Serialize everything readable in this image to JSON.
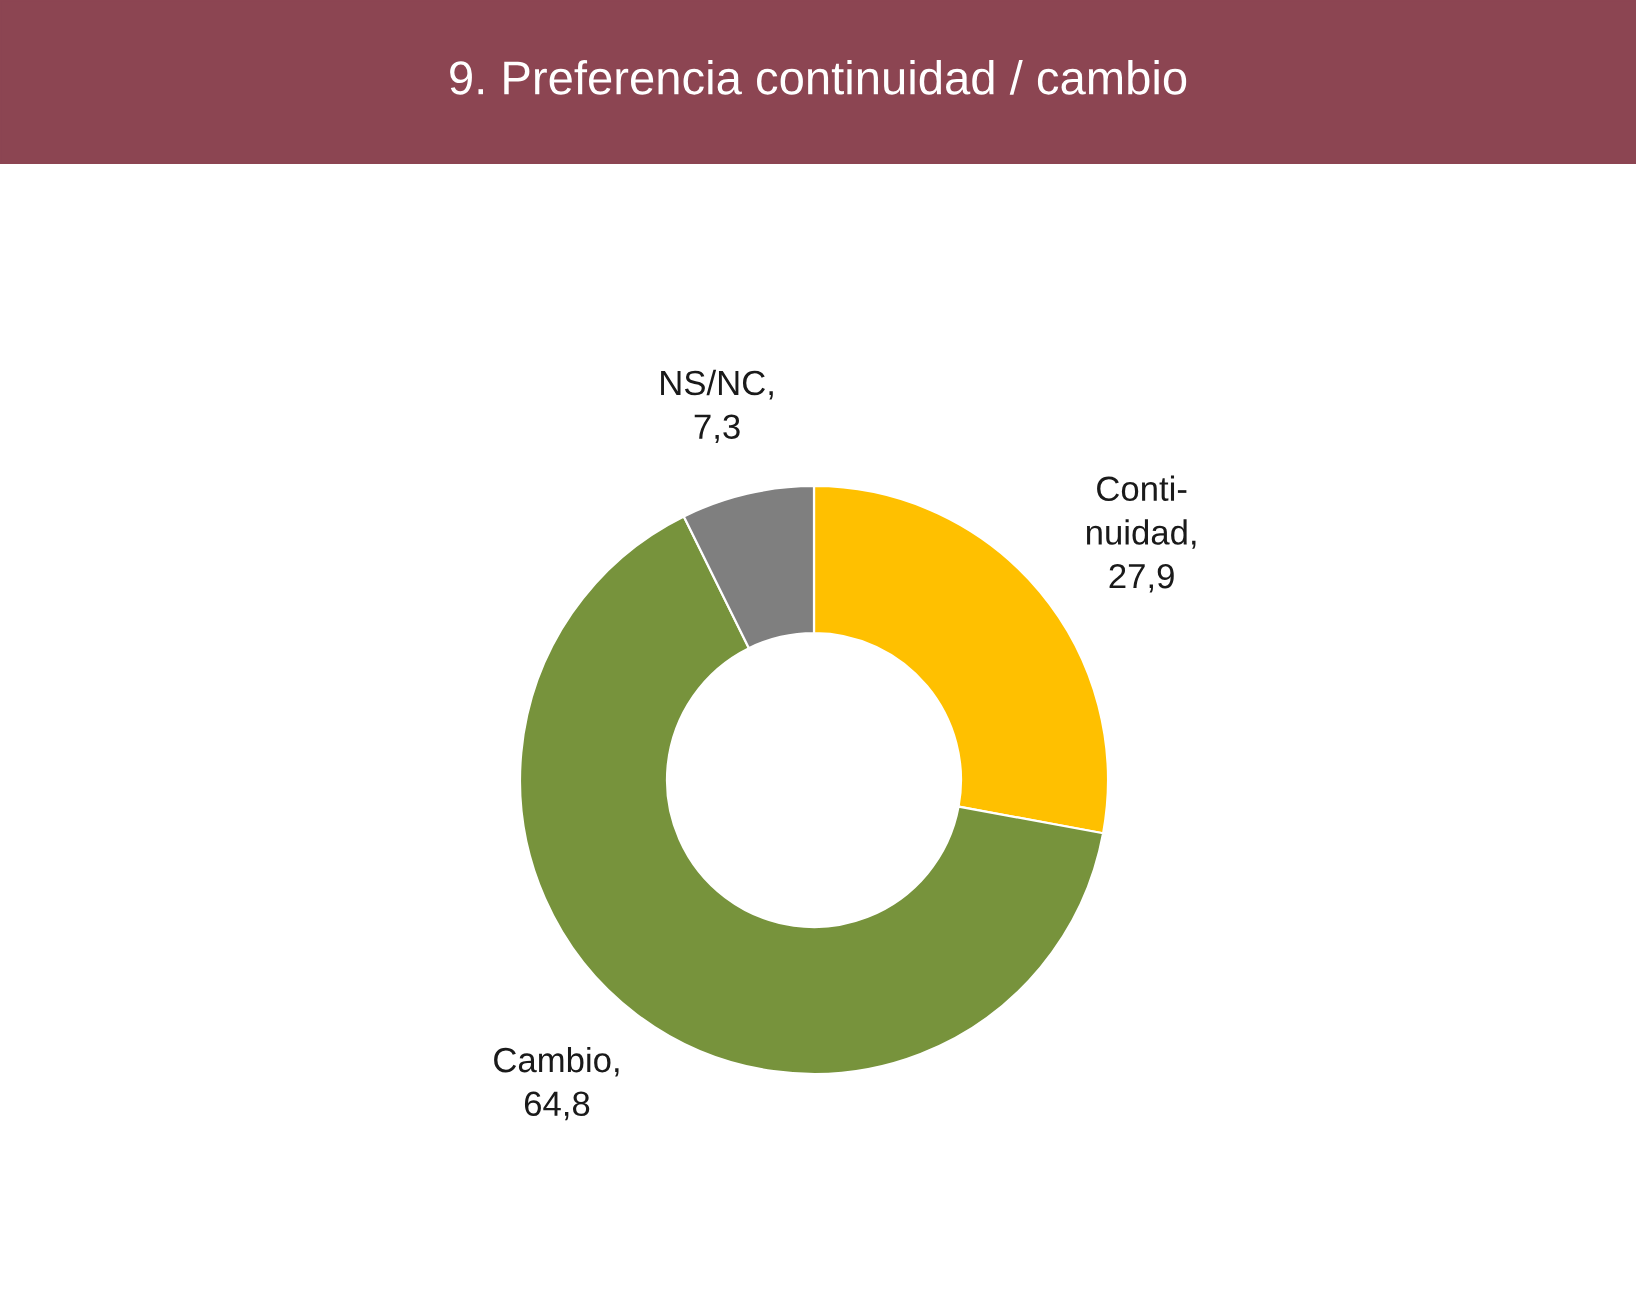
{
  "chart_data": {
    "type": "donut",
    "title": "9. Preferencia continuidad / cambio",
    "categories": [
      null,
      null,
      null
    ],
    "values": [
      27.9,
      64.8,
      7.3
    ],
    "value_labels": [
      "Conti-\nnuidad,\n27,9",
      "Cambio,\n64,8",
      "NS/NC,\n7,3"
    ],
    "colors": [
      "#ffc000",
      "#77933c",
      "#7f7f7f"
    ]
  }
}
